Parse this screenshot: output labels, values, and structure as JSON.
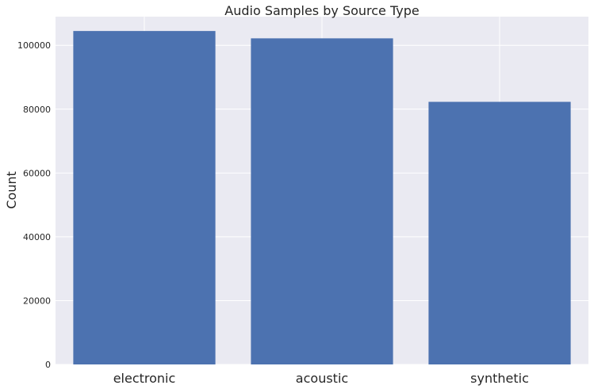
{
  "chart_data": {
    "type": "bar",
    "title": "Audio Samples by Source Type",
    "xlabel": "",
    "ylabel": "Count",
    "categories": [
      "electronic",
      "acoustic",
      "synthetic"
    ],
    "values": [
      104500,
      102200,
      82300
    ],
    "ylim": [
      0,
      109000
    ],
    "yticks": [
      0,
      20000,
      40000,
      60000,
      80000,
      100000
    ],
    "grid": true,
    "colors": {
      "bar": "#4c72b0",
      "background": "#eaeaf2",
      "grid": "#ffffff"
    }
  }
}
